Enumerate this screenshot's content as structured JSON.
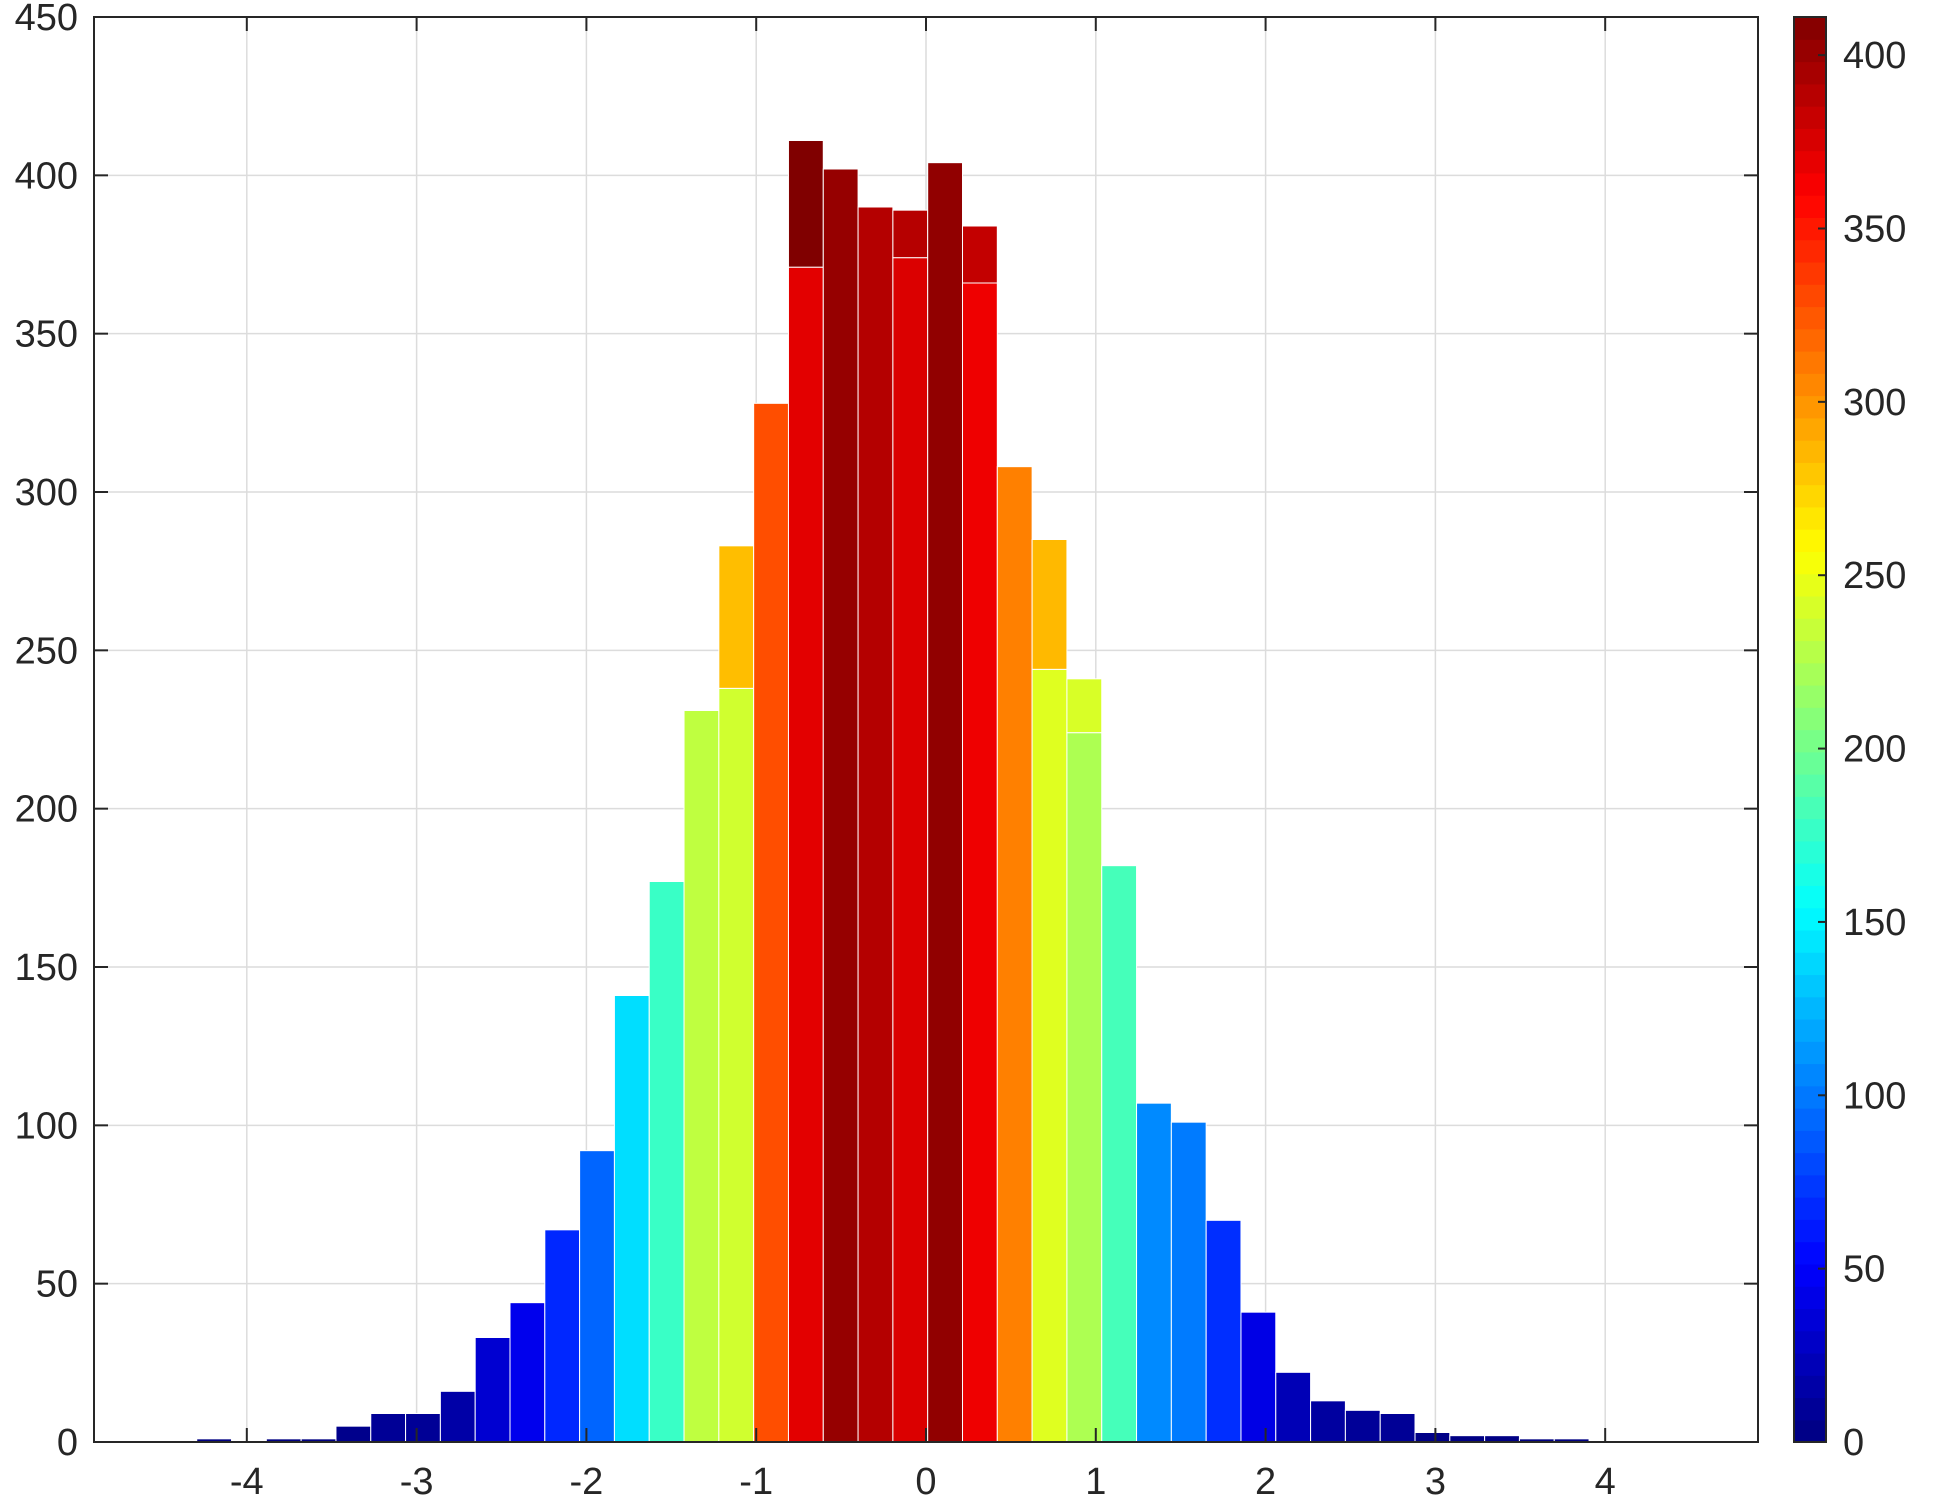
{
  "chart_data": {
    "type": "bar",
    "title": "",
    "xlabel": "",
    "ylabel": "",
    "xlim": [
      -4.9,
      4.9
    ],
    "ylim": [
      0,
      450
    ],
    "grid": true,
    "x_ticks": [
      -4,
      -3,
      -2,
      -1,
      0,
      1,
      2,
      3,
      4
    ],
    "y_ticks": [
      0,
      50,
      100,
      150,
      200,
      250,
      300,
      350,
      400,
      450
    ],
    "bin_width": 0.205,
    "bin_edges_start": -4.5,
    "bars": [
      {
        "count": 0
      },
      {
        "count": 1
      },
      {
        "count": 0
      },
      {
        "count": 1
      },
      {
        "count": 1
      },
      {
        "count": 5
      },
      {
        "count": 9
      },
      {
        "count": 9
      },
      {
        "count": 16
      },
      {
        "count": 33
      },
      {
        "count": 44
      },
      {
        "count": 67
      },
      {
        "count": 92
      },
      {
        "count": 141
      },
      {
        "count": 177
      },
      {
        "count": 231
      },
      {
        "count": 283,
        "lower": 238
      },
      {
        "count": 328
      },
      {
        "count": 411,
        "lower": 371
      },
      {
        "count": 402
      },
      {
        "count": 390
      },
      {
        "count": 389,
        "lower": 374
      },
      {
        "count": 404
      },
      {
        "count": 384,
        "lower": 366
      },
      {
        "count": 308
      },
      {
        "count": 285,
        "lower": 244
      },
      {
        "count": 241,
        "lower": 224
      },
      {
        "count": 182
      },
      {
        "count": 107
      },
      {
        "count": 101
      },
      {
        "count": 70
      },
      {
        "count": 41
      },
      {
        "count": 22
      },
      {
        "count": 13
      },
      {
        "count": 10
      },
      {
        "count": 9
      },
      {
        "count": 3
      },
      {
        "count": 2
      },
      {
        "count": 2
      },
      {
        "count": 1
      },
      {
        "count": 1
      },
      {
        "count": 0
      },
      {
        "count": 0
      }
    ],
    "colorbar": {
      "colormap": "jet",
      "range": [
        0,
        411
      ],
      "ticks": [
        0,
        50,
        100,
        150,
        200,
        250,
        300,
        350,
        400
      ]
    }
  }
}
